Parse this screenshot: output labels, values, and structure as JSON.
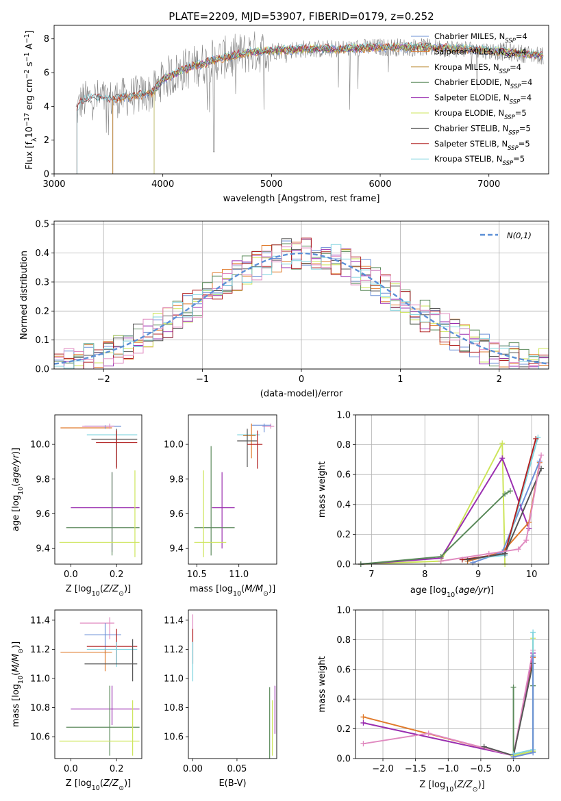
{
  "colors": {
    "chabrier_miles": "#6b8fd6",
    "salpeter_miles": "#e07b2c",
    "kroupa_miles": "#b8862b",
    "chabrier_elodie": "#5b8a5b",
    "salpeter_elodie": "#9a2fb0",
    "kroupa_elodie": "#cde55a",
    "chabrier_stelib": "#555555",
    "salpeter_stelib": "#b22222",
    "kroupa_stelib": "#7fd4df",
    "pink": "#e08ac0",
    "gaussian": "#5b8fd6",
    "grid": "#b0b0b0",
    "spectrum": "#808080"
  },
  "chart_data": [
    {
      "id": "spectrum",
      "type": "line",
      "title": "PLATE=2209, MJD=53907, FIBERID=0179, z=0.252",
      "xlabel": "wavelength [Angstrom, rest frame]",
      "ylabel": "Flux [f_λ 10^-17 erg cm^-2 s^-1 A^-1]",
      "xlim": [
        3000,
        7550
      ],
      "ylim": [
        0,
        8.8
      ],
      "xticks": [
        3000,
        4000,
        5000,
        6000,
        7000
      ],
      "yticks": [
        0,
        2,
        4,
        6,
        8
      ],
      "grid": false,
      "legend_position": "top-right",
      "legend": [
        {
          "main": "Chabrier MILES, N",
          "sub": "SSP",
          "tail": "=4",
          "color_key": "chabrier_miles"
        },
        {
          "main": "Salpeter MILES, N",
          "sub": "SSP",
          "tail": "=4",
          "color_key": "salpeter_miles"
        },
        {
          "main": "Kroupa MILES, N",
          "sub": "SSP",
          "tail": "=4",
          "color_key": "kroupa_miles"
        },
        {
          "main": "Chabrier ELODIE, N",
          "sub": "SSP",
          "tail": "=4",
          "color_key": "chabrier_elodie"
        },
        {
          "main": "Salpeter ELODIE, N",
          "sub": "SSP",
          "tail": "=4",
          "color_key": "salpeter_elodie"
        },
        {
          "main": "Kroupa ELODIE, N",
          "sub": "SSP",
          "tail": "=5",
          "color_key": "kroupa_elodie"
        },
        {
          "main": "Chabrier STELIB, N",
          "sub": "SSP",
          "tail": "=5",
          "color_key": "chabrier_stelib"
        },
        {
          "main": "Salpeter STELIB, N",
          "sub": "SSP",
          "tail": "=5",
          "color_key": "salpeter_stelib"
        },
        {
          "main": "Kroupa STELIB, N",
          "sub": "SSP",
          "tail": "=5",
          "color_key": "kroupa_stelib"
        }
      ],
      "model_envelope": {
        "x": [
          3200,
          3250,
          3350,
          3500,
          3700,
          3900,
          4000,
          4200,
          4500,
          4800,
          5000,
          5300,
          5600,
          6000,
          6400,
          6800,
          7200,
          7500
        ],
        "y": [
          3.6,
          4.3,
          4.5,
          4.4,
          4.6,
          4.8,
          5.6,
          6.2,
          6.8,
          7.2,
          7.3,
          7.4,
          7.4,
          7.5,
          7.5,
          7.4,
          7.2,
          7.0
        ]
      },
      "model_starts": {
        "chabrier_miles": 3540,
        "salpeter_miles": 3540,
        "kroupa_miles": 3540,
        "kroupa_elodie": 3920,
        "chabrier_elodie": 3920,
        "salpeter_elodie": 3920
      }
    },
    {
      "id": "residuals",
      "type": "histogram",
      "xlabel": "(data-model)/error",
      "ylabel": "Normed distribution",
      "xlim": [
        -2.5,
        2.5
      ],
      "ylim": [
        0,
        0.51
      ],
      "xticks": [
        -2,
        -1,
        0,
        1,
        2
      ],
      "yticks": [
        0.0,
        0.1,
        0.2,
        0.3,
        0.4,
        0.5
      ],
      "grid": true,
      "legend_position": "top-right",
      "legend_label": "N(0,1)",
      "bin_width": 0.1
    },
    {
      "id": "age_vs_Z",
      "type": "errorbar",
      "xlabel": "Z [log10(Z/Z⊙)]",
      "ylabel": "age [log10(age/yr)]",
      "xlim": [
        -0.07,
        0.31
      ],
      "ylim": [
        9.31,
        10.17
      ],
      "xticks": [
        0.0,
        0.2
      ],
      "yticks": [
        9.4,
        9.6,
        9.8,
        10.0
      ],
      "points": [
        {
          "c": "salpeter_miles",
          "x": 0.085,
          "xl": -0.045,
          "xh": 0.18,
          "y": 10.095,
          "yl": 10.095,
          "yh": 10.095
        },
        {
          "c": "chabrier_miles",
          "x": 0.15,
          "xl": 0.06,
          "xh": 0.22,
          "y": 10.105,
          "yl": 10.09,
          "yh": 10.11
        },
        {
          "c": "pink",
          "x": 0.17,
          "xl": 0.05,
          "xh": 0.19,
          "y": 10.105,
          "yl": 10.09,
          "yh": 10.12
        },
        {
          "c": "kroupa_stelib",
          "x": 0.2,
          "xl": 0.07,
          "xh": 0.29,
          "y": 10.055,
          "yl": 10.0,
          "yh": 10.08
        },
        {
          "c": "chabrier_stelib",
          "x": 0.2,
          "xl": 0.09,
          "xh": 0.29,
          "y": 10.03,
          "yl": 9.87,
          "yh": 10.09
        },
        {
          "c": "salpeter_stelib",
          "x": 0.2,
          "xl": 0.11,
          "xh": 0.29,
          "y": 10.01,
          "yl": 9.86,
          "yh": 10.08
        },
        {
          "c": "salpeter_elodie",
          "x": 0.18,
          "xl": 0.0,
          "xh": 0.3,
          "y": 9.635,
          "yl": 9.38,
          "yh": 9.84
        },
        {
          "c": "chabrier_elodie",
          "x": 0.18,
          "xl": -0.02,
          "xh": 0.3,
          "y": 9.52,
          "yl": 9.36,
          "yh": 9.84
        },
        {
          "c": "kroupa_elodie",
          "x": 0.28,
          "xl": -0.05,
          "xh": 0.3,
          "y": 9.435,
          "yl": 9.35,
          "yh": 9.85
        }
      ]
    },
    {
      "id": "age_vs_mass",
      "type": "errorbar",
      "xlabel": "mass [log10(M/M⊙)]",
      "ylabel": "",
      "xlim": [
        10.4,
        11.45
      ],
      "ylim": [
        9.31,
        10.17
      ],
      "xticks": [
        10.5,
        11.0
      ],
      "yticks": [
        9.4,
        9.6,
        9.8,
        10.0
      ],
      "points": [
        {
          "c": "pink",
          "x": 11.38,
          "xl": 11.28,
          "xh": 11.42,
          "y": 10.105,
          "yl": 10.09,
          "yh": 10.12
        },
        {
          "c": "chabrier_miles",
          "x": 11.3,
          "xl": 11.15,
          "xh": 11.38,
          "y": 10.11,
          "yl": 10.07,
          "yh": 10.12
        },
        {
          "c": "kroupa_stelib",
          "x": 11.1,
          "xl": 10.98,
          "xh": 11.25,
          "y": 10.055,
          "yl": 10.02,
          "yh": 10.08
        },
        {
          "c": "salpeter_miles",
          "x": 11.15,
          "xl": 11.05,
          "xh": 11.2,
          "y": 10.05,
          "yl": 9.92,
          "yh": 10.12
        },
        {
          "c": "chabrier_stelib",
          "x": 11.1,
          "xl": 10.98,
          "xh": 11.22,
          "y": 10.02,
          "yl": 9.87,
          "yh": 10.09
        },
        {
          "c": "salpeter_stelib",
          "x": 11.22,
          "xl": 11.1,
          "xh": 11.28,
          "y": 10.0,
          "yl": 9.86,
          "yh": 10.08
        },
        {
          "c": "salpeter_elodie",
          "x": 10.8,
          "xl": 10.68,
          "xh": 10.95,
          "y": 9.635,
          "yl": 9.4,
          "yh": 9.84
        },
        {
          "c": "chabrier_elodie",
          "x": 10.67,
          "xl": 10.47,
          "xh": 10.95,
          "y": 9.52,
          "yl": 9.36,
          "yh": 9.99
        },
        {
          "c": "kroupa_elodie",
          "x": 10.58,
          "xl": 10.47,
          "xh": 10.85,
          "y": 9.435,
          "yl": 9.35,
          "yh": 9.85
        }
      ]
    },
    {
      "id": "mass_weight_vs_age",
      "type": "line",
      "xlabel": "age [log10(age/yr)]",
      "ylabel": "mass weight",
      "xlim": [
        6.7,
        10.32
      ],
      "ylim": [
        0,
        1.0
      ],
      "xticks": [
        7,
        8,
        9,
        10
      ],
      "yticks": [
        0.0,
        0.2,
        0.4,
        0.6,
        0.8,
        1.0
      ],
      "grid": true,
      "series": [
        {
          "c": "kroupa_elodie",
          "x": [
            6.8,
            8.3,
            9.45,
            9.5
          ],
          "y": [
            0.0,
            0.02,
            0.81,
            0.0
          ]
        },
        {
          "c": "salpeter_elodie",
          "x": [
            6.8,
            8.3,
            9.45,
            9.95
          ],
          "y": [
            0.0,
            0.04,
            0.71,
            0.24
          ]
        },
        {
          "c": "chabrier_elodie",
          "x": [
            6.8,
            8.3,
            9.5,
            9.6
          ],
          "y": [
            0.0,
            0.05,
            0.47,
            0.49
          ]
        },
        {
          "c": "salpeter_miles",
          "x": [
            8.8,
            9.45,
            9.95,
            10.15
          ],
          "y": [
            0.02,
            0.08,
            0.28,
            0.68
          ]
        },
        {
          "c": "chabrier_miles",
          "x": [
            8.9,
            9.45,
            10.15
          ],
          "y": [
            0.01,
            0.08,
            0.69
          ]
        },
        {
          "c": "kroupa_stelib",
          "x": [
            8.7,
            9.5,
            10.12
          ],
          "y": [
            0.03,
            0.06,
            0.85
          ]
        },
        {
          "c": "salpeter_stelib",
          "x": [
            8.7,
            9.5,
            10.08
          ],
          "y": [
            0.03,
            0.07,
            0.84
          ]
        },
        {
          "c": "chabrier_stelib",
          "x": [
            8.8,
            9.5,
            10.18
          ],
          "y": [
            0.03,
            0.07,
            0.64
          ]
        },
        {
          "c": "pink",
          "x": [
            8.3,
            9.2,
            9.75,
            9.9,
            10.18
          ],
          "y": [
            0.02,
            0.07,
            0.1,
            0.16,
            0.73
          ]
        }
      ]
    },
    {
      "id": "mass_vs_Z",
      "type": "errorbar",
      "xlabel": "Z [log10(Z/Z⊙)]",
      "ylabel": "mass [log10(M/M⊙)]",
      "xlim": [
        -0.07,
        0.31
      ],
      "ylim": [
        10.45,
        11.47
      ],
      "xticks": [
        0.0,
        0.2
      ],
      "yticks": [
        10.6,
        10.8,
        11.0,
        11.2,
        11.4
      ],
      "points": [
        {
          "c": "pink",
          "x": 0.17,
          "xl": 0.04,
          "xh": 0.19,
          "y": 11.38,
          "yl": 11.27,
          "yh": 11.42
        },
        {
          "c": "chabrier_miles",
          "x": 0.15,
          "xl": 0.06,
          "xh": 0.22,
          "y": 11.3,
          "yl": 11.17,
          "yh": 11.38
        },
        {
          "c": "salpeter_stelib",
          "x": 0.2,
          "xl": 0.07,
          "xh": 0.29,
          "y": 11.22,
          "yl": 11.1,
          "yh": 11.34
        },
        {
          "c": "kroupa_stelib",
          "x": 0.2,
          "xl": 0.07,
          "xh": 0.29,
          "y": 11.2,
          "yl": 11.08,
          "yh": 11.25
        },
        {
          "c": "salpeter_miles",
          "x": 0.15,
          "xl": -0.045,
          "xh": 0.18,
          "y": 11.18,
          "yl": 11.05,
          "yh": 11.2
        },
        {
          "c": "chabrier_stelib",
          "x": 0.27,
          "xl": 0.06,
          "xh": 0.29,
          "y": 11.1,
          "yl": 10.98,
          "yh": 11.27
        },
        {
          "c": "salpeter_elodie",
          "x": 0.18,
          "xl": 0.0,
          "xh": 0.3,
          "y": 10.79,
          "yl": 10.68,
          "yh": 10.95
        },
        {
          "c": "chabrier_elodie",
          "x": 0.17,
          "xl": -0.02,
          "xh": 0.3,
          "y": 10.665,
          "yl": 10.47,
          "yh": 10.95
        },
        {
          "c": "kroupa_elodie",
          "x": 0.27,
          "xl": -0.05,
          "xh": 0.3,
          "y": 10.57,
          "yl": 10.47,
          "yh": 10.85
        }
      ]
    },
    {
      "id": "mass_vs_EBV",
      "type": "errorbar",
      "xlabel": "E(B-V)",
      "ylabel": "",
      "xlim": [
        -0.005,
        0.095
      ],
      "ylim": [
        10.45,
        11.47
      ],
      "xticks": [
        0.0,
        0.05
      ],
      "yticks": [
        10.6,
        10.8,
        11.0,
        11.2,
        11.4
      ],
      "points": [
        {
          "c": "pink",
          "x": 0.0,
          "y": 11.38,
          "yl": 11.26,
          "yh": 11.44
        },
        {
          "c": "salpeter_stelib",
          "x": 0.0,
          "y": 11.22,
          "yl": 11.1,
          "yh": 11.34
        },
        {
          "c": "kroupa_stelib",
          "x": 0.0,
          "y": 11.15,
          "yl": 10.98,
          "yh": 11.25
        },
        {
          "c": "chabrier_elodie",
          "x": 0.087,
          "y": 10.7,
          "yl": 10.45,
          "yh": 10.94
        },
        {
          "c": "kroupa_elodie",
          "x": 0.09,
          "y": 10.62,
          "yl": 10.47,
          "yh": 10.85
        },
        {
          "c": "salpeter_elodie",
          "x": 0.093,
          "y": 10.79,
          "yl": 10.62,
          "yh": 10.95
        }
      ]
    },
    {
      "id": "mass_weight_vs_Z",
      "type": "line",
      "xlabel": "Z [log10(Z/Z⊙)]",
      "ylabel": "mass weight",
      "xlim": [
        -2.42,
        0.54
      ],
      "ylim": [
        0,
        1.0
      ],
      "xticks": [
        -2.0,
        -1.5,
        -1.0,
        -0.5,
        0.0
      ],
      "yticks": [
        0.0,
        0.2,
        0.4,
        0.6,
        0.8,
        1.0
      ],
      "grid": true,
      "series": [
        {
          "c": "salpeter_miles",
          "x": [
            -2.3,
            0.0,
            0.3
          ],
          "y": [
            0.28,
            0.02,
            0.68
          ]
        },
        {
          "c": "salpeter_elodie",
          "x": [
            -2.3,
            0.0,
            0.3
          ],
          "y": [
            0.24,
            0.02,
            0.71
          ]
        },
        {
          "c": "pink",
          "x": [
            -2.3,
            -1.3,
            0.0,
            0.3
          ],
          "y": [
            0.1,
            0.17,
            0.02,
            0.73
          ]
        },
        {
          "c": "chabrier_elodie",
          "x": [
            0.0,
            0.0,
            0.3,
            0.3
          ],
          "y": [
            0.48,
            0.02,
            0.05,
            0.49
          ]
        },
        {
          "c": "chabrier_stelib",
          "x": [
            -0.45,
            0.0,
            0.3
          ],
          "y": [
            0.08,
            0.02,
            0.64
          ]
        },
        {
          "c": "kroupa_elodie",
          "x": [
            0.0,
            0.3,
            0.3
          ],
          "y": [
            0.02,
            0.05,
            0.81
          ]
        },
        {
          "c": "kroupa_stelib",
          "x": [
            0.0,
            0.3,
            0.3
          ],
          "y": [
            0.03,
            0.06,
            0.85
          ]
        },
        {
          "c": "chabrier_miles",
          "x": [
            0.0,
            0.3,
            0.3
          ],
          "y": [
            0.01,
            0.04,
            0.69
          ]
        }
      ]
    }
  ]
}
